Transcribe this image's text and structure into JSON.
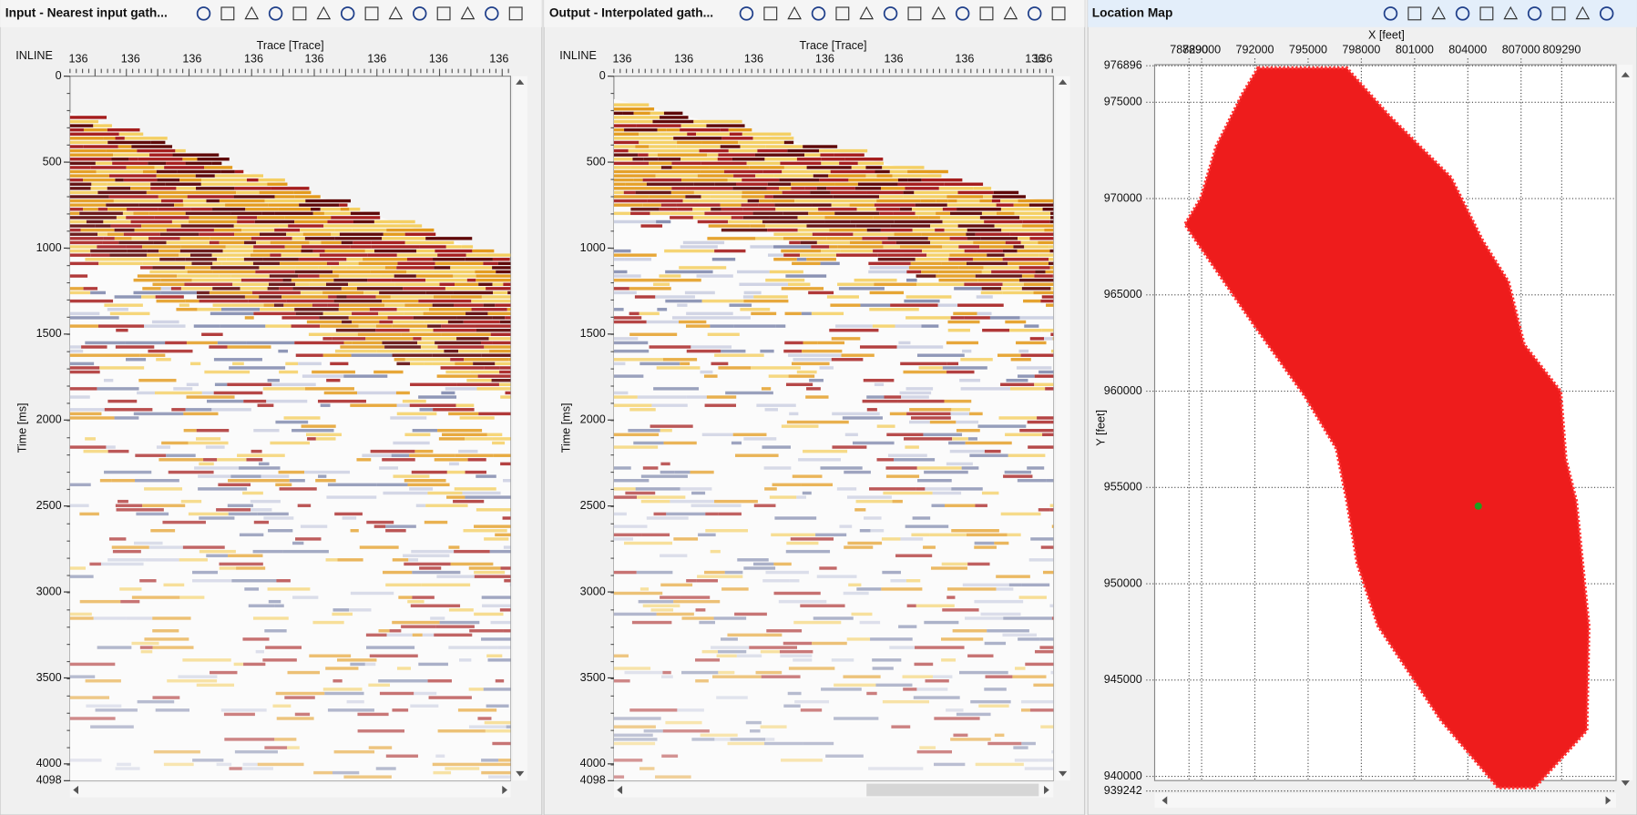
{
  "panels": [
    {
      "title": "Input - Nearest input gath...",
      "corner_label": "INLINE",
      "x_axis_label": "Trace [Trace]",
      "y_axis_label": "Time [ms]",
      "x_ticks": [
        "136",
        "136",
        "136",
        "136",
        "136",
        "136",
        "136",
        "136"
      ],
      "y_ticks": [
        0,
        500,
        1000,
        1500,
        2000,
        2500,
        3000,
        3500,
        4000,
        4098
      ]
    },
    {
      "title": "Output - Interpolated gath...",
      "corner_label": "INLINE",
      "x_axis_label": "Trace [Trace]",
      "y_axis_label": "Time [ms]",
      "x_ticks": [
        "136",
        "136",
        "136",
        "136",
        "136",
        "136",
        "136",
        "136"
      ],
      "y_ticks": [
        0,
        500,
        1000,
        1500,
        2000,
        2500,
        3000,
        3500,
        4000,
        4098
      ]
    },
    {
      "title": "Location Map",
      "x_axis_label": "X [feet]",
      "y_axis_label": "Y [feet]",
      "x_ticks": [
        788290,
        789000,
        792000,
        795000,
        798000,
        801000,
        804000,
        807000,
        809290
      ],
      "y_ticks": [
        976896,
        975000,
        970000,
        965000,
        960000,
        955000,
        950000,
        945000,
        940000,
        939242
      ]
    }
  ]
}
